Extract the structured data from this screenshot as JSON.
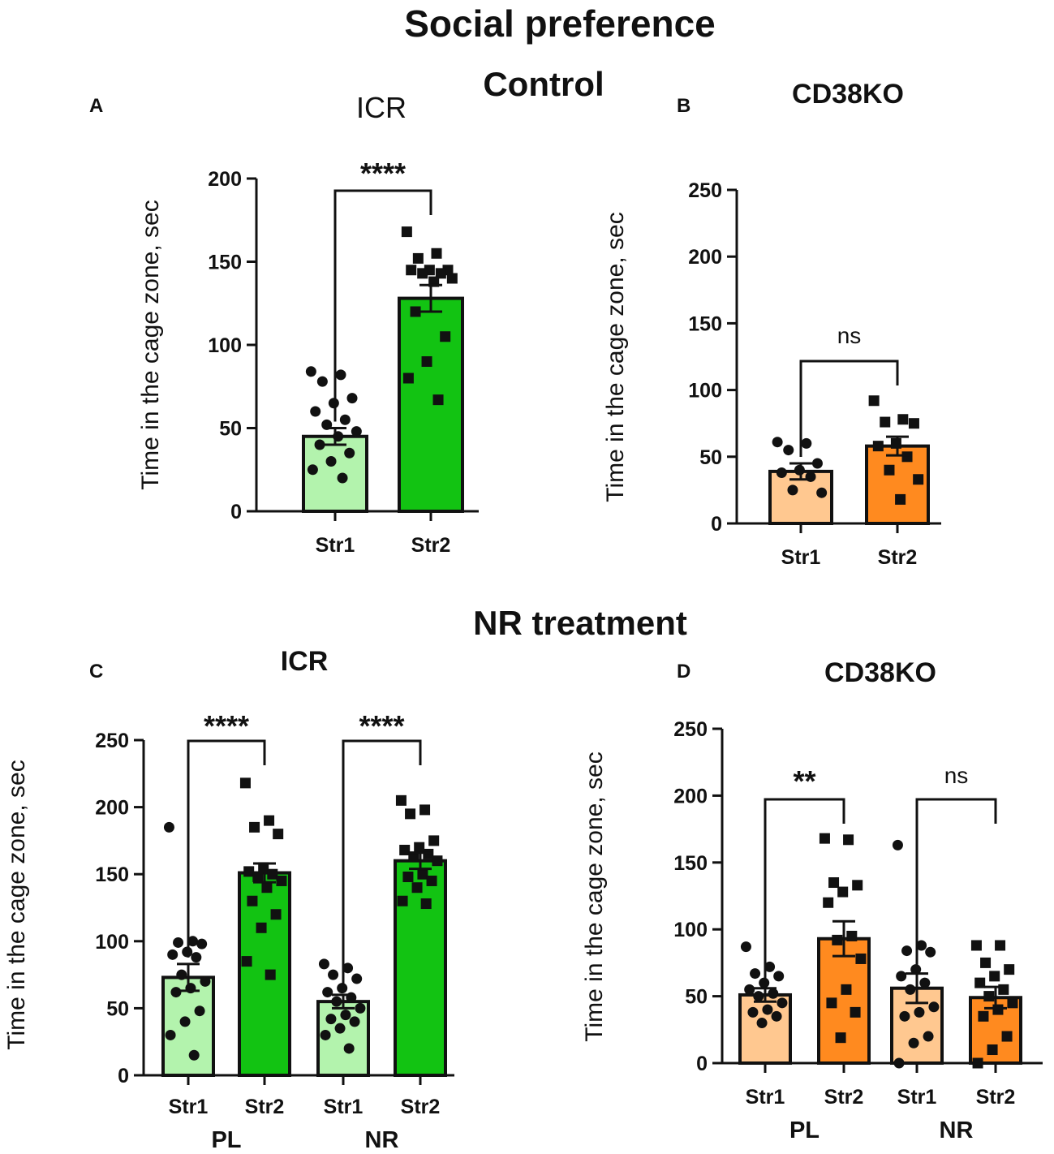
{
  "figure": {
    "title": "Social preference",
    "section_control": "Control",
    "section_nr": "NR treatment"
  },
  "chart_data": [
    {
      "panel": "A",
      "type": "bar",
      "title": "ICR",
      "ylabel": "Time in the cage zone, sec",
      "ylim": [
        0,
        200
      ],
      "yticks": [
        0,
        50,
        100,
        150,
        200
      ],
      "categories": [
        "Str1",
        "Str2"
      ],
      "groups": [],
      "values": [
        45,
        128
      ],
      "sem": [
        5,
        8
      ],
      "bar_colors": [
        "#b3f3ad",
        "#12c312"
      ],
      "points": [
        {
          "marker": "circle",
          "values": [
            84,
            82,
            78,
            68,
            65,
            60,
            55,
            52,
            48,
            45,
            40,
            35,
            30,
            25,
            20
          ]
        },
        {
          "marker": "square",
          "values": [
            168,
            155,
            152,
            145,
            145,
            145,
            143,
            143,
            140,
            138,
            120,
            105,
            90,
            80,
            67
          ]
        }
      ],
      "comparisons": [
        {
          "from": 0,
          "to": 1,
          "label": "****"
        }
      ]
    },
    {
      "panel": "B",
      "type": "bar",
      "title": "CD38KO",
      "ylabel": "Time in the cage zone, sec",
      "ylim": [
        0,
        250
      ],
      "yticks": [
        0,
        50,
        100,
        150,
        200,
        250
      ],
      "categories": [
        "Str1",
        "Str2"
      ],
      "groups": [],
      "values": [
        39,
        58
      ],
      "sem": [
        6,
        7
      ],
      "bar_colors": [
        "#ffc890",
        "#ff8a1f"
      ],
      "points": [
        {
          "marker": "circle",
          "values": [
            61,
            60,
            55,
            45,
            40,
            38,
            35,
            25,
            23
          ]
        },
        {
          "marker": "square",
          "values": [
            92,
            78,
            76,
            75,
            60,
            58,
            50,
            40,
            33,
            18
          ]
        }
      ],
      "comparisons": [
        {
          "from": 0,
          "to": 1,
          "label": "ns"
        }
      ]
    },
    {
      "panel": "C",
      "type": "bar",
      "title": "ICR",
      "ylabel": "Time in the cage zone, sec",
      "ylim": [
        0,
        250
      ],
      "yticks": [
        0,
        50,
        100,
        150,
        200,
        250
      ],
      "categories": [
        "Str1",
        "Str2",
        "Str1",
        "Str2"
      ],
      "groups": [
        {
          "label": "PL",
          "span": [
            0,
            1
          ]
        },
        {
          "label": "NR",
          "span": [
            2,
            3
          ]
        }
      ],
      "values": [
        73,
        151,
        55,
        160
      ],
      "sem": [
        10,
        7,
        5,
        6
      ],
      "bar_colors": [
        "#b3f3ad",
        "#12c312",
        "#b3f3ad",
        "#12c312"
      ],
      "points": [
        {
          "marker": "circle",
          "values": [
            185,
            100,
            99,
            98,
            92,
            90,
            88,
            75,
            70,
            65,
            62,
            48,
            40,
            30,
            15
          ]
        },
        {
          "marker": "square",
          "values": [
            218,
            190,
            185,
            180,
            155,
            152,
            150,
            148,
            145,
            140,
            130,
            120,
            110,
            85,
            75
          ]
        },
        {
          "marker": "circle",
          "values": [
            83,
            80,
            75,
            72,
            65,
            62,
            58,
            55,
            50,
            45,
            42,
            40,
            35,
            30,
            20
          ]
        },
        {
          "marker": "square",
          "values": [
            205,
            198,
            195,
            175,
            170,
            168,
            165,
            163,
            160,
            150,
            148,
            145,
            140,
            130,
            128
          ]
        }
      ],
      "comparisons": [
        {
          "from": 0,
          "to": 1,
          "label": "****"
        },
        {
          "from": 2,
          "to": 3,
          "label": "****"
        }
      ]
    },
    {
      "panel": "D",
      "type": "bar",
      "title": "CD38KO",
      "ylabel": "Time in the cage zone, sec",
      "ylim": [
        0,
        250
      ],
      "yticks": [
        0,
        50,
        100,
        150,
        200,
        250
      ],
      "categories": [
        "Str1",
        "Str2",
        "Str1",
        "Str2"
      ],
      "groups": [
        {
          "label": "PL",
          "span": [
            0,
            1
          ]
        },
        {
          "label": "NR",
          "span": [
            2,
            3
          ]
        }
      ],
      "values": [
        51,
        93,
        56,
        49
      ],
      "sem": [
        5,
        13,
        11,
        8
      ],
      "bar_colors": [
        "#ffc890",
        "#ff8a1f",
        "#ffc890",
        "#ff8a1f"
      ],
      "points": [
        {
          "marker": "circle",
          "values": [
            87,
            72,
            67,
            65,
            60,
            55,
            52,
            50,
            45,
            40,
            38,
            35,
            30
          ]
        },
        {
          "marker": "square",
          "values": [
            168,
            167,
            135,
            133,
            128,
            120,
            95,
            92,
            78,
            55,
            45,
            38,
            19
          ]
        },
        {
          "marker": "circle",
          "values": [
            163,
            88,
            84,
            83,
            70,
            65,
            60,
            55,
            42,
            38,
            35,
            20,
            15,
            0
          ]
        },
        {
          "marker": "square",
          "values": [
            88,
            88,
            75,
            70,
            65,
            60,
            55,
            50,
            45,
            40,
            35,
            20,
            10,
            0
          ]
        }
      ],
      "comparisons": [
        {
          "from": 0,
          "to": 1,
          "label": "**"
        },
        {
          "from": 2,
          "to": 3,
          "label": "ns"
        }
      ]
    }
  ]
}
